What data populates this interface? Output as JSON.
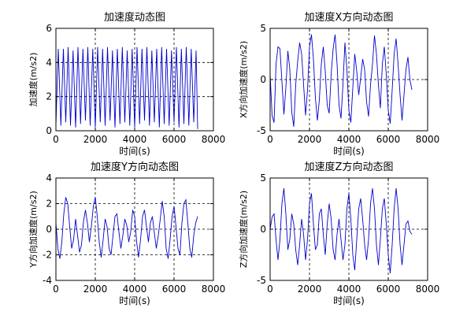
{
  "chart_data": [
    {
      "type": "line",
      "title": "加速度动态图",
      "xlabel": "时间(s)",
      "ylabel": "加速度(m/s2)",
      "xlim": [
        0,
        8000
      ],
      "ylim": [
        0,
        6
      ],
      "xticks": [
        0,
        2000,
        4000,
        6000,
        8000
      ],
      "yticks": [
        0,
        2,
        4,
        6
      ],
      "grid": true,
      "series": [
        {
          "x": [
            0,
            120,
            250,
            380,
            500,
            620,
            740,
            870,
            1000,
            1120,
            1250,
            1370,
            1500,
            1620,
            1740,
            1870,
            2000,
            2120,
            2250,
            2370,
            2500,
            2620,
            2750,
            2870,
            3000,
            3120,
            3250,
            3370,
            3500,
            3620,
            3750,
            3870,
            4000,
            4120,
            4250,
            4370,
            4500,
            4620,
            4750,
            4870,
            5000,
            5120,
            5250,
            5370,
            5500,
            5620,
            5750,
            5870,
            6000,
            6120,
            6250,
            6370,
            6500,
            6620,
            6750,
            6870,
            7000,
            7120,
            7200
          ],
          "y": [
            0.3,
            4.8,
            0.3,
            4.8,
            0.5,
            4.9,
            0.3,
            4.7,
            0.2,
            4.9,
            0.4,
            4.8,
            0.6,
            4.9,
            0.3,
            4.8,
            0.2,
            4.9,
            0.5,
            4.8,
            0.3,
            4.9,
            0.6,
            4.7,
            0.2,
            4.8,
            0.4,
            4.9,
            0.5,
            4.7,
            0.3,
            4.8,
            0.2,
            4.9,
            0.4,
            4.8,
            0.6,
            4.9,
            0.3,
            4.7,
            0.5,
            4.8,
            0.2,
            4.9,
            0.4,
            4.8,
            0.3,
            4.7,
            0.5,
            4.9,
            0.2,
            4.8,
            0.4,
            4.9,
            0.3,
            4.8,
            0.5,
            4.7,
            0.1
          ]
        }
      ]
    },
    {
      "type": "line",
      "title": "加速度X方向动态图",
      "xlabel": "时间(s)",
      "ylabel": "X方向加速度(m/s2)",
      "xlim": [
        0,
        8000
      ],
      "ylim": [
        -5,
        5
      ],
      "xticks": [
        0,
        2000,
        4000,
        6000,
        8000
      ],
      "yticks": [
        -5,
        0,
        5
      ],
      "grid": true,
      "series": [
        {
          "x": [
            0,
            100,
            200,
            300,
            400,
            500,
            600,
            700,
            800,
            900,
            1000,
            1100,
            1200,
            1300,
            1400,
            1500,
            1600,
            1700,
            1800,
            1900,
            2000,
            2100,
            2200,
            2300,
            2400,
            2500,
            2600,
            2700,
            2800,
            2900,
            3000,
            3100,
            3200,
            3300,
            3400,
            3500,
            3600,
            3700,
            3800,
            3900,
            4000,
            4100,
            4200,
            4300,
            4400,
            4500,
            4600,
            4700,
            4800,
            4900,
            5000,
            5100,
            5200,
            5300,
            5400,
            5500,
            5600,
            5700,
            5800,
            5900,
            6000,
            6100,
            6200,
            6300,
            6400,
            6500,
            6600,
            6700,
            6800,
            6900,
            7000,
            7100,
            7200
          ],
          "y": [
            0.5,
            -3.5,
            -4.2,
            1.5,
            3.2,
            3.0,
            -0.2,
            -3.4,
            -0.8,
            2.8,
            1.0,
            -3.2,
            -4.6,
            -0.5,
            1.8,
            3.6,
            2.5,
            -0.5,
            -3.5,
            -1.0,
            3.2,
            4.4,
            2.0,
            -1.8,
            -4.0,
            -2.0,
            1.5,
            3.2,
            0.8,
            -2.5,
            -3.3,
            0.5,
            3.0,
            4.4,
            1.5,
            -2.5,
            -3.8,
            -0.5,
            3.6,
            1.0,
            -3.0,
            -4.2,
            -0.8,
            2.5,
            0.8,
            -1.5,
            0.2,
            2.0,
            1.0,
            -2.2,
            -3.6,
            -0.5,
            1.5,
            4.3,
            2.5,
            -0.5,
            -2.8,
            1.5,
            3.2,
            0.5,
            -3.0,
            -4.3,
            -1.0,
            2.5,
            4.0,
            1.5,
            -1.5,
            -4.0,
            -1.5,
            1.0,
            2.2,
            0.0,
            -1.0
          ]
        }
      ]
    },
    {
      "type": "line",
      "title": "加速度Y方向动态图",
      "xlabel": "时间(s)",
      "ylabel": "Y方向加速度(m/s2)",
      "xlim": [
        0,
        8000
      ],
      "ylim": [
        -4,
        4
      ],
      "xticks": [
        0,
        2000,
        4000,
        6000,
        8000
      ],
      "yticks": [
        -4,
        -2,
        0,
        2,
        4
      ],
      "grid": true,
      "series": [
        {
          "x": [
            0,
            100,
            200,
            300,
            400,
            500,
            600,
            700,
            800,
            900,
            1000,
            1100,
            1200,
            1300,
            1400,
            1500,
            1600,
            1700,
            1800,
            1900,
            2000,
            2100,
            2200,
            2300,
            2400,
            2500,
            2600,
            2700,
            2800,
            2900,
            3000,
            3100,
            3200,
            3300,
            3400,
            3500,
            3600,
            3700,
            3800,
            3900,
            4000,
            4100,
            4200,
            4300,
            4400,
            4500,
            4600,
            4700,
            4800,
            4900,
            5000,
            5100,
            5200,
            5300,
            5400,
            5500,
            5600,
            5700,
            5800,
            5900,
            6000,
            6100,
            6200,
            6300,
            6400,
            6500,
            6600,
            6700,
            6800,
            6900,
            7000,
            7100,
            7200
          ],
          "y": [
            0.5,
            -1.5,
            -2.3,
            -1.0,
            1.2,
            2.5,
            2.0,
            0.2,
            -1.5,
            -0.8,
            0.8,
            -0.5,
            -1.8,
            -1.2,
            0.6,
            1.5,
            0.5,
            -1.0,
            0.2,
            1.8,
            2.5,
            1.0,
            -1.0,
            -2.2,
            -0.8,
            0.8,
            0.2,
            -1.5,
            -2.0,
            -0.5,
            1.0,
            1.2,
            -0.2,
            -1.5,
            -0.5,
            0.8,
            0.3,
            -1.0,
            -0.2,
            1.5,
            1.0,
            -1.0,
            -2.2,
            -0.8,
            1.0,
            1.5,
            0.2,
            -1.0,
            0.5,
            1.0,
            -0.3,
            -1.5,
            -0.5,
            0.8,
            2.2,
            1.0,
            -1.5,
            -2.3,
            -0.8,
            1.0,
            1.8,
            0.2,
            -1.5,
            -2.0,
            0.5,
            2.0,
            2.3,
            0.5,
            -1.5,
            -2.2,
            -0.5,
            0.5,
            1.0
          ]
        }
      ]
    },
    {
      "type": "line",
      "title": "加速度Z方向动态图",
      "xlabel": "时间(s)",
      "ylabel": "Z方向加速度(m/s2)",
      "xlim": [
        0,
        8000
      ],
      "ylim": [
        -5,
        5
      ],
      "xticks": [
        0,
        2000,
        4000,
        6000,
        8000
      ],
      "yticks": [
        -5,
        0,
        5
      ],
      "grid": true,
      "series": [
        {
          "x": [
            0,
            100,
            200,
            300,
            400,
            500,
            600,
            700,
            800,
            900,
            1000,
            1100,
            1200,
            1300,
            1400,
            1500,
            1600,
            1700,
            1800,
            1900,
            2000,
            2100,
            2200,
            2300,
            2400,
            2500,
            2600,
            2700,
            2800,
            2900,
            3000,
            3100,
            3200,
            3300,
            3400,
            3500,
            3600,
            3700,
            3800,
            3900,
            4000,
            4100,
            4200,
            4300,
            4400,
            4500,
            4600,
            4700,
            4800,
            4900,
            5000,
            5100,
            5200,
            5300,
            5400,
            5500,
            5600,
            5700,
            5800,
            5900,
            6000,
            6100,
            6200,
            6300,
            6400,
            6500,
            6600,
            6700,
            6800,
            6900,
            7000,
            7100,
            7200
          ],
          "y": [
            0.0,
            1.2,
            1.5,
            -1.0,
            -3.0,
            -1.0,
            2.5,
            4.0,
            1.5,
            -2.0,
            -1.0,
            1.5,
            0.5,
            -2.0,
            -3.5,
            -1.5,
            1.0,
            -0.5,
            -3.0,
            -1.0,
            2.5,
            3.5,
            0.5,
            -2.0,
            -1.5,
            1.5,
            2.0,
            -0.5,
            -2.5,
            0.5,
            2.5,
            1.0,
            -2.0,
            -3.0,
            -0.5,
            1.0,
            -1.0,
            -3.0,
            -1.5,
            2.0,
            3.5,
            1.0,
            -2.5,
            -4.0,
            -1.0,
            2.0,
            3.0,
            1.0,
            -1.5,
            -3.0,
            -1.0,
            2.5,
            4.0,
            2.0,
            -1.5,
            -3.5,
            -1.0,
            2.0,
            3.0,
            0.5,
            -2.5,
            -4.3,
            -1.5,
            2.0,
            4.0,
            2.0,
            -1.5,
            -3.5,
            -1.5,
            0.5,
            0.8,
            -0.2,
            -0.5
          ]
        }
      ]
    }
  ]
}
